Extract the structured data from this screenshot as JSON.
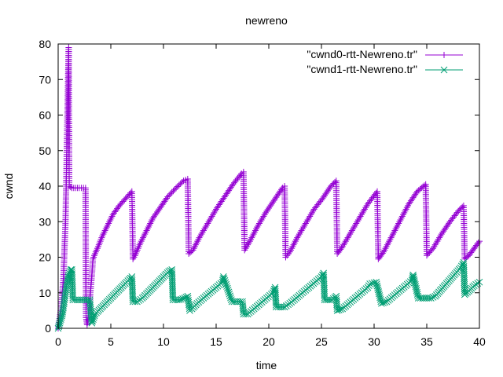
{
  "chart_data": {
    "type": "line",
    "title": "newreno",
    "xlabel": "time",
    "ylabel": "cwnd",
    "xlim": [
      0,
      40
    ],
    "ylim": [
      0,
      80
    ],
    "xticks": [
      0,
      5,
      10,
      15,
      20,
      25,
      30,
      35,
      40
    ],
    "yticks": [
      0,
      10,
      20,
      30,
      40,
      50,
      60,
      70,
      80
    ],
    "grid": false,
    "legend_position": "top-right",
    "series": [
      {
        "name": "\"cwnd0-rtt-Newreno.tr\"",
        "color": "#9400d3",
        "marker": "plus",
        "x": [
          0.0,
          0.3,
          0.5,
          0.7,
          0.85,
          1.0,
          1.05,
          1.3,
          2.0,
          2.6,
          2.65,
          2.75,
          2.85,
          3.0,
          3.2,
          3.3,
          3.5,
          3.8,
          4.2,
          4.7,
          5.2,
          5.8,
          6.4,
          7.0,
          7.1,
          7.3,
          7.8,
          8.4,
          9.0,
          9.7,
          10.4,
          11.2,
          11.9,
          12.3,
          12.4,
          12.8,
          13.4,
          14.2,
          15.0,
          15.8,
          16.6,
          17.4,
          17.6,
          17.7,
          18.2,
          18.9,
          19.7,
          20.5,
          21.3,
          21.5,
          21.6,
          22.0,
          22.7,
          23.5,
          24.3,
          25.1,
          25.9,
          26.4,
          26.5,
          27.0,
          27.8,
          28.6,
          29.4,
          30.3,
          30.4,
          30.9,
          31.7,
          32.5,
          33.3,
          34.1,
          34.9,
          35.0,
          35.6,
          36.4,
          37.2,
          38.0,
          38.5,
          38.6,
          39.0,
          39.5,
          40.0
        ],
        "y": [
          0,
          6,
          14,
          30,
          55,
          79,
          40,
          39.5,
          39.5,
          39.5,
          3,
          1,
          3,
          8,
          15,
          19.5,
          21,
          23,
          26,
          29,
          32,
          34.5,
          36.5,
          38.5,
          19.5,
          20.5,
          24,
          27.5,
          31,
          34,
          37,
          39.5,
          41.5,
          42,
          21,
          22,
          25.5,
          29.5,
          33.5,
          37,
          40.5,
          43.5,
          44,
          22,
          24.5,
          28.5,
          32.5,
          36,
          39.5,
          40,
          20,
          21.5,
          25.5,
          29.5,
          33.5,
          36.5,
          40,
          41.5,
          21,
          23,
          27,
          31,
          35,
          38.5,
          19.5,
          21.5,
          26,
          30.5,
          35,
          38.5,
          40.5,
          20.5,
          22.5,
          26.5,
          30,
          33,
          34.5,
          19.5,
          20.5,
          22.5,
          24.5
        ]
      },
      {
        "name": "\"cwnd1-rtt-Newreno.tr\"",
        "color": "#009e73",
        "marker": "cross",
        "x": [
          0.0,
          0.2,
          0.4,
          0.6,
          0.8,
          1.0,
          1.2,
          1.3,
          1.4,
          2.0,
          2.6,
          3.0,
          3.2,
          3.5,
          4.0,
          4.5,
          5.0,
          5.5,
          6.0,
          6.5,
          7.0,
          7.1,
          7.5,
          8.0,
          8.5,
          9.0,
          9.5,
          10.0,
          10.5,
          10.8,
          10.9,
          11.5,
          12.0,
          12.3,
          12.5,
          12.7,
          13.2,
          13.8,
          14.4,
          15.0,
          15.6,
          15.7,
          16.5,
          17.5,
          17.6,
          18.0,
          18.6,
          19.2,
          19.8,
          20.4,
          20.6,
          20.7,
          21.5,
          22.0,
          22.6,
          23.2,
          23.8,
          24.4,
          25.0,
          25.2,
          25.3,
          26.0,
          26.4,
          26.5,
          27.0,
          27.6,
          28.2,
          28.8,
          29.4,
          29.6,
          30.2,
          30.7,
          31.2,
          31.8,
          32.4,
          33.0,
          33.6,
          33.7,
          34.2,
          34.8,
          35.4,
          35.8,
          36.4,
          37.0,
          37.6,
          38.2,
          38.5,
          38.6,
          39.0,
          39.5,
          40.0
        ],
        "y": [
          0,
          2,
          4,
          8,
          12,
          15,
          16.5,
          16.5,
          8,
          8,
          8,
          8,
          1.5,
          4,
          5.5,
          7,
          8.5,
          10,
          11.5,
          13,
          14.5,
          7.5,
          7.5,
          8.5,
          10,
          11.5,
          13,
          14.5,
          16,
          16.5,
          8,
          8,
          8.5,
          9,
          5,
          5.5,
          7,
          8.5,
          10,
          11.5,
          13,
          14.5,
          7.5,
          7.5,
          4,
          4,
          5.5,
          7,
          8.5,
          10,
          11.5,
          6,
          6,
          7,
          8.5,
          10,
          11.5,
          13,
          14.5,
          15.5,
          8,
          8,
          9,
          5,
          5.5,
          7,
          8.5,
          10,
          11.5,
          12.5,
          13,
          7,
          7.5,
          9,
          10.5,
          12,
          13.5,
          15,
          8.5,
          8.5,
          8.5,
          9,
          11,
          13,
          15,
          17,
          18.5,
          9.5,
          10.5,
          12,
          13
        ]
      }
    ]
  }
}
